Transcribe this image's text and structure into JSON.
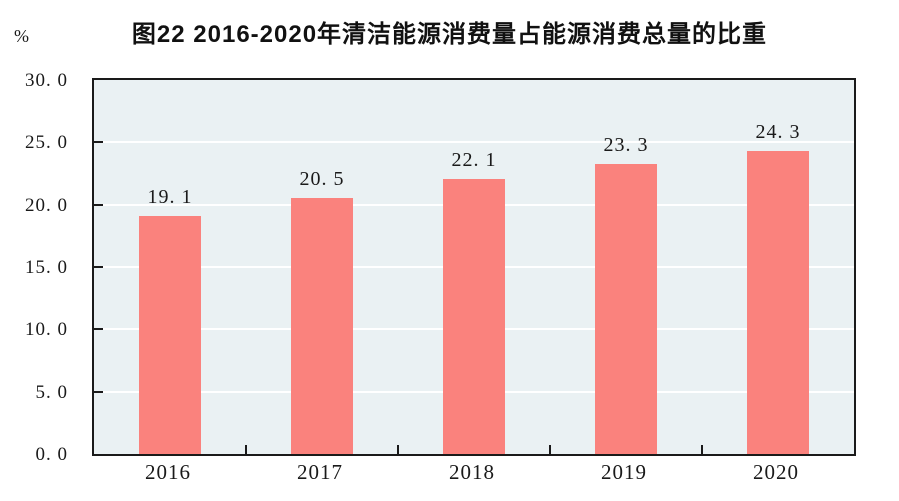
{
  "figure": {
    "title": "图22  2016-2020年清洁能源消费量占能源消费总量的比重",
    "unit_label": "%"
  },
  "chart_data": {
    "type": "bar",
    "title": "图22  2016-2020年清洁能源消费量占能源消费总量的比重",
    "categories": [
      "2016",
      "2017",
      "2018",
      "2019",
      "2020"
    ],
    "values": [
      19.1,
      20.5,
      22.1,
      23.3,
      24.3
    ],
    "data_labels": [
      "19. 1",
      "20. 5",
      "22. 1",
      "23. 3",
      "24. 3"
    ],
    "xlabel": "",
    "ylabel": "%",
    "ylim": [
      0,
      30
    ],
    "ytick_step": 5,
    "ytick_labels": [
      "0. 0",
      "5. 0",
      "10. 0",
      "15. 0",
      "20. 0",
      "25. 0",
      "30. 0"
    ],
    "grid": "horizontal",
    "legend": "none",
    "colors": {
      "bar_fill": "#FA827D",
      "plot_background": "#EAF1F3",
      "gridline": "#FFFFFF",
      "axis": "#1A1A1A",
      "text": "#1A1A1A"
    }
  }
}
